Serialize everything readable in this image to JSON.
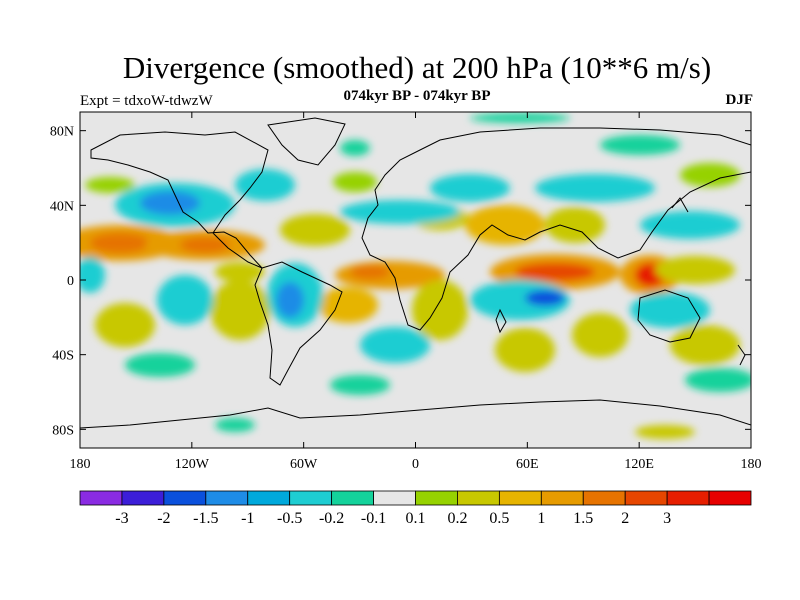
{
  "title": "Divergence (smoothed) at 200 hPa (10**6 m/s)",
  "subtitle": "074kyr BP - 074kyr BP",
  "experiment": "Expt = tdxoW-tdwzW",
  "season": "DJF",
  "map": {
    "projection": "cylindrical-equidistant",
    "lon_range": [
      -180,
      180
    ],
    "lat_range": [
      -90,
      90
    ],
    "background_color": "#e6e6e6",
    "x_ticks": [
      {
        "lon": -180,
        "label": "180"
      },
      {
        "lon": -120,
        "label": "120W"
      },
      {
        "lon": -60,
        "label": "60W"
      },
      {
        "lon": 0,
        "label": "0"
      },
      {
        "lon": 60,
        "label": "60E"
      },
      {
        "lon": 120,
        "label": "120E"
      },
      {
        "lon": 180,
        "label": "180"
      }
    ],
    "y_ticks": [
      {
        "lat": 80,
        "label": "80N"
      },
      {
        "lat": 40,
        "label": "40N"
      },
      {
        "lat": 0,
        "label": "0"
      },
      {
        "lat": -40,
        "label": "40S"
      },
      {
        "lat": -80,
        "label": "80S"
      }
    ],
    "features": [
      {
        "name": "pacific-convergence-north",
        "lon": -160,
        "lat": 22,
        "value": 1.2
      },
      {
        "name": "pacific-convergence-north-2",
        "lon": -120,
        "lat": 20,
        "value": 1.0
      },
      {
        "name": "atlantic-divergence-equatorial",
        "lon": -30,
        "lat": 0,
        "value": 1.0
      },
      {
        "name": "indian-ocean-max",
        "lon": 70,
        "lat": 3,
        "value": 1.6
      },
      {
        "name": "maritime-continent-max",
        "lon": 130,
        "lat": 3,
        "value": 2.1
      },
      {
        "name": "north-america-min",
        "lon": -110,
        "lat": 40,
        "value": -0.6
      },
      {
        "name": "south-america-min",
        "lon": -70,
        "lat": -10,
        "value": -0.7
      },
      {
        "name": "indian-ocean-south-min",
        "lon": 70,
        "lat": -12,
        "value": -1.0
      },
      {
        "name": "pacific-south-min",
        "lon": 160,
        "lat": -15,
        "value": -0.5
      },
      {
        "name": "southern-ocean-band",
        "lon": 150,
        "lat": -50,
        "value": -0.3
      }
    ]
  },
  "colorbar": {
    "colors": [
      "#8a2be2",
      "#3c1ed8",
      "#0a50dc",
      "#1e8ce6",
      "#00a9dc",
      "#1ecdd2",
      "#14d29b",
      "#e6e6e6",
      "#96d200",
      "#c8c800",
      "#e6b400",
      "#e69b00",
      "#e67300",
      "#e64600",
      "#e61e00",
      "#e60000"
    ],
    "labels": [
      "-3",
      "-2",
      "-1.5",
      "-1",
      "-0.5",
      "-0.2",
      "-0.1",
      "0.1",
      "0.2",
      "0.5",
      "1",
      "1.5",
      "2",
      "3"
    ],
    "levels": [
      -3,
      -2,
      -1.5,
      -1,
      -0.5,
      -0.2,
      -0.1,
      0.1,
      0.2,
      0.5,
      1,
      1.5,
      2,
      3
    ]
  }
}
